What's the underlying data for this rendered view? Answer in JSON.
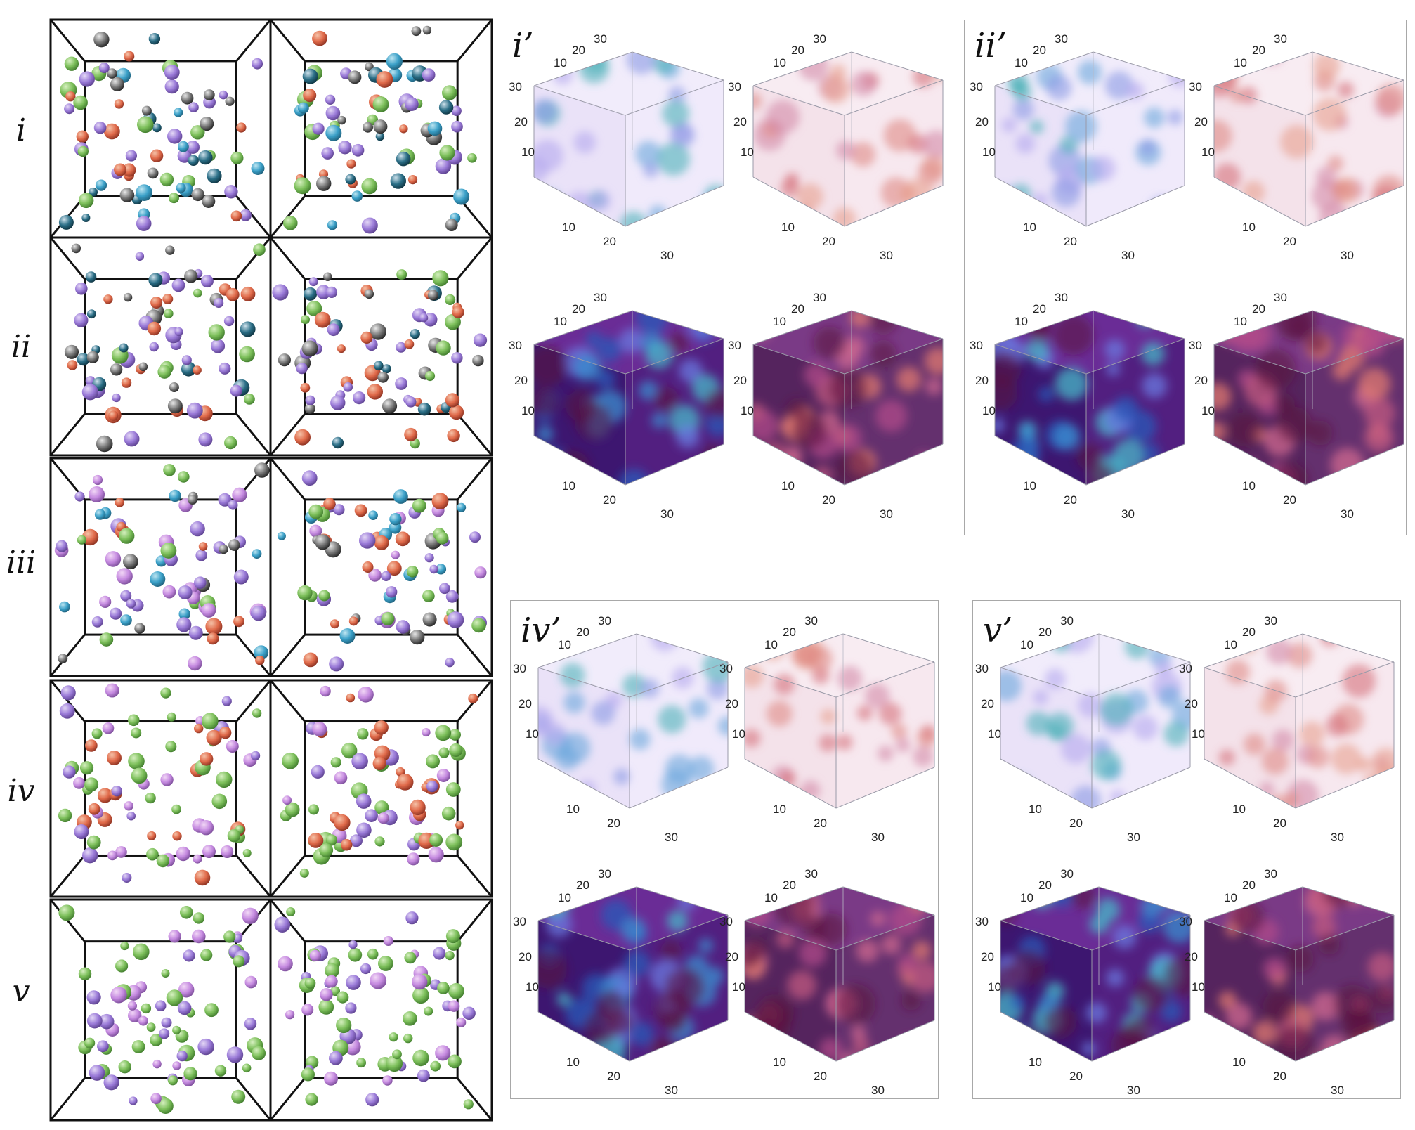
{
  "row_labels": [
    "i",
    "ii",
    "iii",
    "iv",
    "v"
  ],
  "panel_labels": [
    "i’",
    "ii’",
    "iv’",
    "v’"
  ],
  "axis_ticks": {
    "t10": "10",
    "t20": "20",
    "t30": "30"
  },
  "colors": {
    "blue_species": "#3aa0c8",
    "red_species": "#e06a4a",
    "green_species": "#7cbf5a",
    "violet_species": "#9a7ad8",
    "frame": "#111111"
  }
}
